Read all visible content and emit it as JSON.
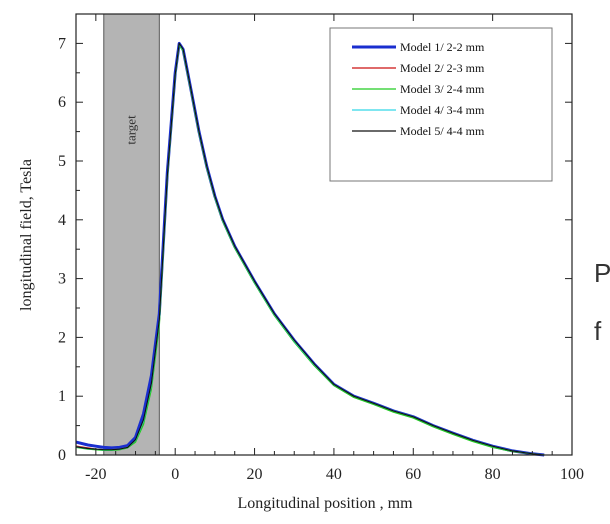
{
  "chart_data": {
    "type": "line",
    "title": "",
    "xlabel": "Longitudinal position , mm",
    "ylabel": "longitudinal field, Tesla",
    "xlim": [
      -25,
      100
    ],
    "ylim": [
      0,
      7.5
    ],
    "xticks": [
      -20,
      0,
      20,
      40,
      60,
      80,
      100
    ],
    "yticks": [
      0,
      1,
      2,
      3,
      4,
      5,
      6,
      7
    ],
    "legend_position": "top-right",
    "grid": false,
    "target_region": {
      "label": "target",
      "x_start": -18,
      "x_end": -4
    },
    "series": [
      {
        "name": "Model 1/ 2-2 mm",
        "color": "#1a2ecf",
        "width": 3,
        "x": [
          -25,
          -22,
          -20,
          -18,
          -16,
          -14,
          -12,
          -10,
          -8,
          -6,
          -4,
          -2,
          0,
          1,
          2,
          4,
          6,
          8,
          10,
          12,
          15,
          20,
          25,
          30,
          35,
          40,
          45,
          50,
          55,
          60,
          65,
          70,
          75,
          80,
          85,
          90,
          93
        ],
        "y": [
          0.22,
          0.17,
          0.15,
          0.13,
          0.12,
          0.13,
          0.16,
          0.3,
          0.7,
          1.35,
          2.4,
          4.8,
          6.5,
          7.0,
          6.9,
          6.2,
          5.5,
          4.9,
          4.4,
          4.0,
          3.55,
          2.95,
          2.4,
          1.95,
          1.55,
          1.2,
          1.0,
          0.88,
          0.75,
          0.65,
          0.5,
          0.37,
          0.25,
          0.15,
          0.07,
          0.02,
          0.0
        ]
      },
      {
        "name": "Model 2/ 2-3 mm",
        "color": "#cc1111",
        "width": 1.3,
        "x": [
          -25,
          -22,
          -20,
          -18,
          -16,
          -14,
          -12,
          -10,
          -8,
          -6,
          -4,
          -2,
          0,
          1,
          2,
          4,
          6,
          8,
          10,
          12,
          15,
          20,
          25,
          30,
          35,
          40,
          45,
          50,
          55,
          60,
          65,
          70,
          75,
          80,
          85,
          90,
          93
        ],
        "y": [
          0.15,
          0.12,
          0.1,
          0.09,
          0.09,
          0.1,
          0.13,
          0.24,
          0.55,
          1.15,
          2.25,
          4.7,
          6.45,
          6.98,
          6.88,
          6.18,
          5.48,
          4.88,
          4.38,
          3.98,
          3.53,
          2.93,
          2.38,
          1.93,
          1.53,
          1.19,
          0.99,
          0.87,
          0.74,
          0.64,
          0.49,
          0.36,
          0.24,
          0.14,
          0.06,
          0.02,
          0.0
        ]
      },
      {
        "name": "Model 3/ 2-4 mm",
        "color": "#22cc22",
        "width": 1.3,
        "x": [
          -25,
          -22,
          -20,
          -18,
          -16,
          -14,
          -12,
          -10,
          -8,
          -6,
          -4,
          -2,
          0,
          1,
          2,
          4,
          6,
          8,
          10,
          12,
          15,
          20,
          25,
          30,
          35,
          40,
          45,
          50,
          55,
          60,
          65,
          70,
          75,
          80,
          85,
          90,
          93
        ],
        "y": [
          0.13,
          0.1,
          0.09,
          0.08,
          0.08,
          0.09,
          0.12,
          0.22,
          0.52,
          1.12,
          2.2,
          4.68,
          6.44,
          6.97,
          6.87,
          6.17,
          5.47,
          4.87,
          4.37,
          3.97,
          3.52,
          2.92,
          2.37,
          1.92,
          1.52,
          1.18,
          0.98,
          0.86,
          0.73,
          0.63,
          0.48,
          0.35,
          0.23,
          0.13,
          0.06,
          0.02,
          0.0
        ]
      },
      {
        "name": "Model 4/ 3-4 mm",
        "color": "#33d6e6",
        "width": 1.3,
        "x": [
          -25,
          -22,
          -20,
          -18,
          -16,
          -14,
          -12,
          -10,
          -8,
          -6,
          -4,
          -2,
          0,
          1,
          2,
          4,
          6,
          8,
          10,
          12,
          15,
          20,
          25,
          30,
          35,
          40,
          45,
          50,
          55,
          60,
          65,
          70,
          75,
          80,
          85,
          90,
          93
        ],
        "y": [
          0.14,
          0.11,
          0.1,
          0.09,
          0.09,
          0.1,
          0.13,
          0.25,
          0.58,
          1.2,
          2.28,
          4.72,
          6.46,
          6.99,
          6.89,
          6.19,
          5.49,
          4.89,
          4.39,
          3.99,
          3.54,
          2.94,
          2.39,
          1.94,
          1.54,
          1.2,
          1.0,
          0.88,
          0.75,
          0.65,
          0.5,
          0.37,
          0.25,
          0.15,
          0.07,
          0.02,
          0.0
        ]
      },
      {
        "name": "Model 5/ 4-4 mm",
        "color": "#111111",
        "width": 1.2,
        "x": [
          -25,
          -22,
          -20,
          -18,
          -16,
          -14,
          -12,
          -10,
          -8,
          -6,
          -4,
          -2,
          0,
          1,
          2,
          4,
          6,
          8,
          10,
          12,
          15,
          20,
          25,
          30,
          35,
          40,
          45,
          50,
          55,
          60,
          65,
          70,
          75,
          80,
          85,
          90,
          93
        ],
        "y": [
          0.14,
          0.11,
          0.1,
          0.09,
          0.09,
          0.1,
          0.13,
          0.26,
          0.6,
          1.22,
          2.3,
          4.74,
          6.47,
          7.0,
          6.9,
          6.2,
          5.5,
          4.9,
          4.4,
          4.0,
          3.55,
          2.95,
          2.4,
          1.95,
          1.55,
          1.2,
          1.0,
          0.88,
          0.75,
          0.65,
          0.5,
          0.37,
          0.25,
          0.15,
          0.07,
          0.02,
          0.0
        ]
      }
    ]
  },
  "side_text": {
    "line1": "P",
    "line2": "f"
  }
}
